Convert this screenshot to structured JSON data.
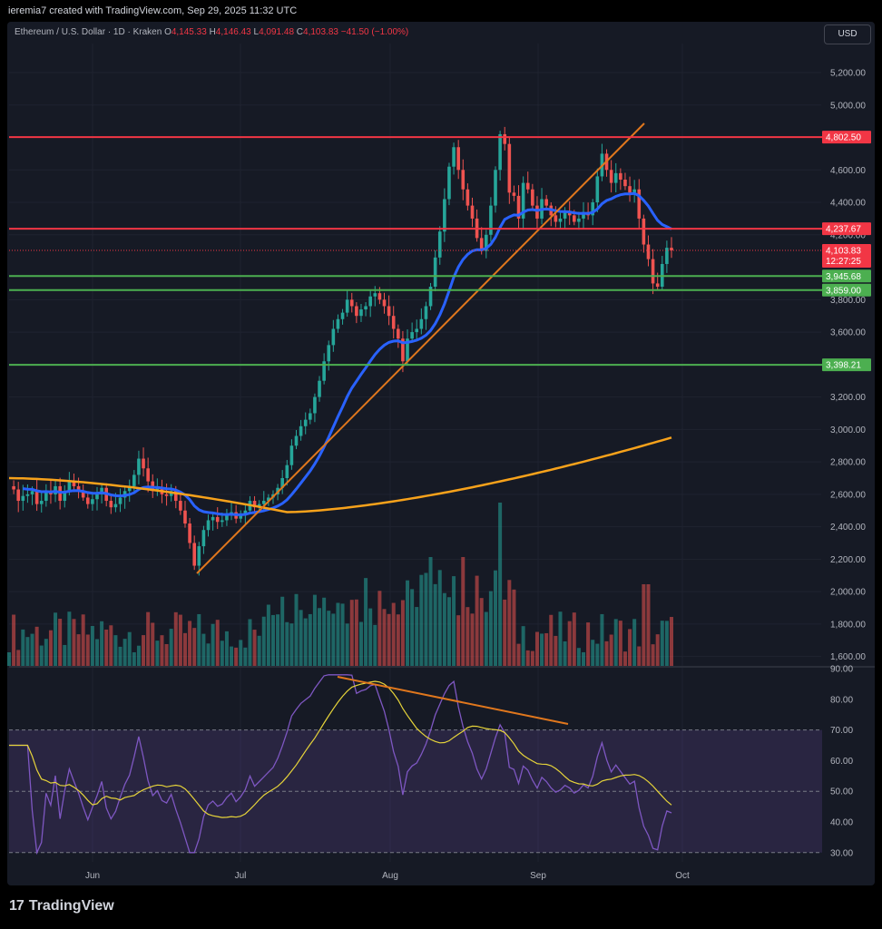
{
  "header": {
    "credit": "ieremia7 created with TradingView.com, Sep 29, 2025 11:32 UTC",
    "symbol": "Ethereum / U.S. Dollar · 1D · Kraken",
    "o_label": "O",
    "o_value": "4,145.33",
    "h_label": "H",
    "h_value": "4,146.43",
    "l_label": "L",
    "l_value": "4,091.48",
    "c_label": "C",
    "c_value": "4,103.83",
    "change": "−41.50 (−1.00%)",
    "currency_button": "USD"
  },
  "footer": {
    "brand": "TradingView",
    "logo_mark": "17"
  },
  "colors": {
    "up": "#26a69a",
    "down": "#ef5350",
    "ema_fast": "#2962ff",
    "ema_slow": "#f7a21b",
    "resistance": "#f23645",
    "support": "#4caf50",
    "trendline": "#e0771d",
    "rsi": "#7e57c2",
    "rsi_ma": "#e6d43a"
  },
  "chart_data": [
    {
      "type": "candlestick",
      "title": "",
      "x_ticks": [
        "Jun",
        "Jul",
        "Aug",
        "Sep",
        "Oct"
      ],
      "y_ticks": [
        "5,200.00",
        "5,000.00",
        "4,800.00",
        "4,600.00",
        "4,400.00",
        "4,200.00",
        "3,800.00",
        "3,600.00",
        "3,400.00",
        "3,200.00",
        "3,000.00",
        "2,800.00",
        "2,600.00",
        "2,400.00",
        "2,200.00",
        "2,000.00",
        "1,800.00",
        "1,600.00"
      ],
      "ylim": [
        1550,
        5380
      ],
      "horizontal_levels": [
        {
          "label": "4,802.50",
          "value": 4802.5,
          "kind": "resistance"
        },
        {
          "label": "4,237.67",
          "value": 4237.67,
          "kind": "resistance"
        },
        {
          "label": "3,945.68",
          "value": 3945.68,
          "kind": "support"
        },
        {
          "label": "3,859.00",
          "value": 3859.0,
          "kind": "support"
        },
        {
          "label": "3,398.21",
          "value": 3398.21,
          "kind": "support"
        }
      ],
      "last_price": {
        "label": "4,103.83",
        "value": 4103.83,
        "countdown": "12:27:25"
      },
      "price_series": [
        2650,
        2630,
        2560,
        2590,
        2600,
        2620,
        2540,
        2560,
        2620,
        2600,
        2650,
        2560,
        2620,
        2680,
        2650,
        2620,
        2580,
        2540,
        2570,
        2600,
        2640,
        2560,
        2520,
        2540,
        2580,
        2620,
        2650,
        2720,
        2820,
        2760,
        2680,
        2620,
        2640,
        2600,
        2590,
        2620,
        2560,
        2500,
        2420,
        2300,
        2160,
        2280,
        2380,
        2440,
        2460,
        2430,
        2440,
        2470,
        2490,
        2450,
        2470,
        2500,
        2560,
        2520,
        2540,
        2560,
        2580,
        2600,
        2640,
        2700,
        2780,
        2900,
        2960,
        3020,
        3060,
        3100,
        3200,
        3300,
        3420,
        3520,
        3620,
        3680,
        3720,
        3800,
        3760,
        3700,
        3740,
        3760,
        3820,
        3840,
        3800,
        3760,
        3700,
        3620,
        3560,
        3420,
        3560,
        3600,
        3620,
        3680,
        3760,
        3880,
        4060,
        4220,
        4420,
        4620,
        4740,
        4600,
        4480,
        4380,
        4300,
        4180,
        4100,
        4200,
        4380,
        4600,
        4820,
        4760,
        4460,
        4440,
        4300,
        4520,
        4480,
        4380,
        4300,
        4420,
        4380,
        4320,
        4280,
        4300,
        4340,
        4320,
        4280,
        4300,
        4340,
        4320,
        4400,
        4560,
        4700,
        4600,
        4520,
        4580,
        4540,
        4500,
        4460,
        4480,
        4300,
        4140,
        4050,
        3900,
        3880,
        4020,
        4120,
        4103.83
      ],
      "volume_bars": 146,
      "volume_peaks": "visual only"
    },
    {
      "type": "line",
      "title": "",
      "y_ticks": [
        "90.00",
        "80.00",
        "70.00",
        "60.00",
        "50.00",
        "40.00",
        "30.00"
      ],
      "ylim": [
        30,
        90
      ],
      "band": [
        30,
        70
      ],
      "midline": 50
    }
  ]
}
